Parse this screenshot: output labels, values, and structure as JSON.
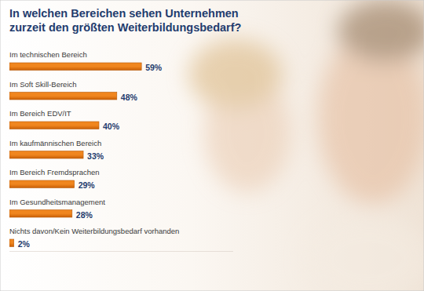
{
  "chart_data": {
    "type": "bar",
    "orientation": "horizontal",
    "title": "In welchen Bereichen sehen Unternehmen zurzeit den größten Weiterbildungsbedarf?",
    "categories": [
      "Im technischen Bereich",
      "Im Soft Skill-Bereich",
      "Im Bereich EDV/IT",
      "Im kaufmännischen Bereich",
      "Im Bereich Fremdsprachen",
      "Im Gesundheitsmanagement",
      "Nichts davon/Kein Weiterbildungsbedarf vorhanden"
    ],
    "values": [
      59,
      48,
      40,
      33,
      29,
      28,
      2
    ],
    "value_labels": [
      "59%",
      "48%",
      "40%",
      "33%",
      "29%",
      "28%",
      "2%"
    ],
    "data_labels": true,
    "color": "#f0861f",
    "xlim": [
      0,
      100
    ],
    "tick_labels": false,
    "grid": false
  }
}
